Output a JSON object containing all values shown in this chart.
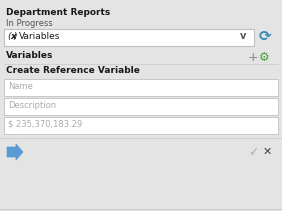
{
  "bg_color": "#e4e4e4",
  "title": "Department Reports",
  "subtitle": "In Progress",
  "dropdown_bg": "#ffffff",
  "section_label": "Variables",
  "section2_label": "Create Reference Variable",
  "field1_placeholder": "Name",
  "field2_placeholder": "Description",
  "field3_value": "$ 235,370,183.29",
  "field_bg": "#ffffff",
  "field_border": "#c0c0c0",
  "text_placeholder_color": "#aaaaaa",
  "text_color": "#1a1a1a",
  "title_fontsize": 6.5,
  "subtitle_fontsize": 6.0,
  "label_fontsize": 6.5,
  "field_fontsize": 6.0,
  "arrow_color": "#5b9bd5",
  "gear_color": "#4a9a3a",
  "plus_color": "#888888",
  "check_color": "#b0b0b0",
  "x_color": "#444444",
  "refresh_color": "#3a8ab5",
  "subtitle_color": "#555555"
}
